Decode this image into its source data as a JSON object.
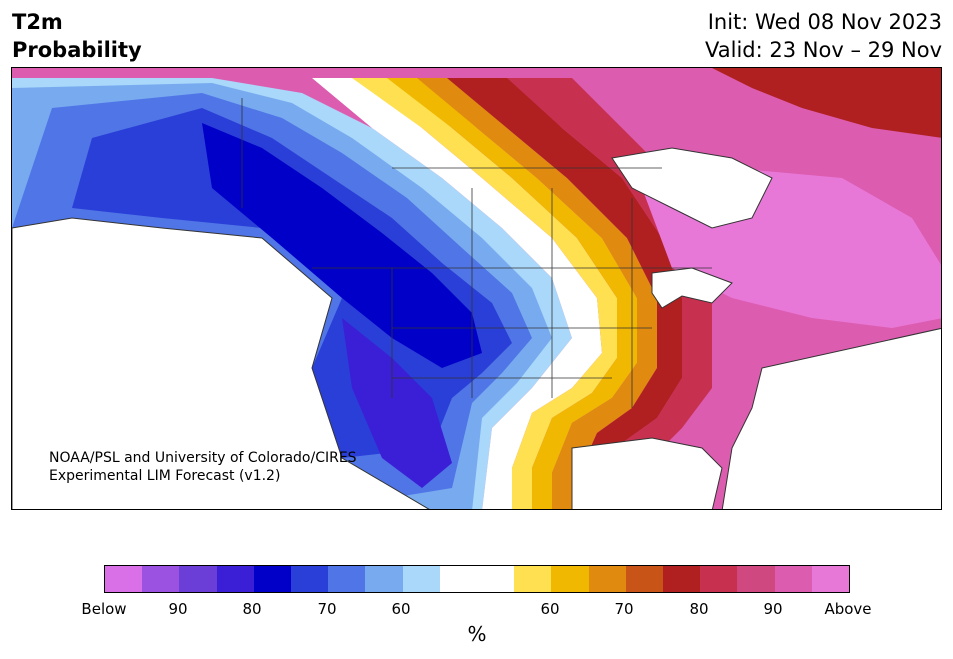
{
  "title": {
    "line1": "T2m",
    "line2": "Probability"
  },
  "dates": {
    "init": "Init: Wed 08 Nov 2023",
    "valid": "Valid: 23 Nov – 29 Nov"
  },
  "credit": {
    "line1": "NOAA/PSL and University of Colorado/CIRES",
    "line2": "Experimental LIM Forecast (v1.2)"
  },
  "colorbar": {
    "colors": [
      "#d970e8",
      "#9b52e0",
      "#6b3ed8",
      "#3a1fd6",
      "#0000c8",
      "#2a3fd8",
      "#5075e6",
      "#78aaf0",
      "#aad8fa",
      "#ffffff",
      "#ffffff",
      "#ffe050",
      "#f0b800",
      "#e08a10",
      "#c85418",
      "#b02020",
      "#c83050",
      "#d04880",
      "#dc5cb0",
      "#e878d8"
    ],
    "ticks": [
      "Below",
      "90",
      "80",
      "70",
      "60",
      "60",
      "70",
      "80",
      "90",
      "Above"
    ],
    "unit": "%"
  },
  "map_colors": {
    "below_outer": "#78aaf0",
    "below_mid": "#5075e6",
    "below_inner": "#2a3fd8",
    "below_core": "#0000c8",
    "below_deep": "#3a1fd6",
    "neutral": "#ffffff",
    "above_yellow": "#ffe050",
    "above_gold": "#f0b800",
    "above_orange": "#e08a10",
    "above_red": "#b02020",
    "above_crimson": "#c83050",
    "above_rose": "#d04880",
    "above_pink": "#dc5cb0",
    "above_magenta": "#e878d8"
  }
}
